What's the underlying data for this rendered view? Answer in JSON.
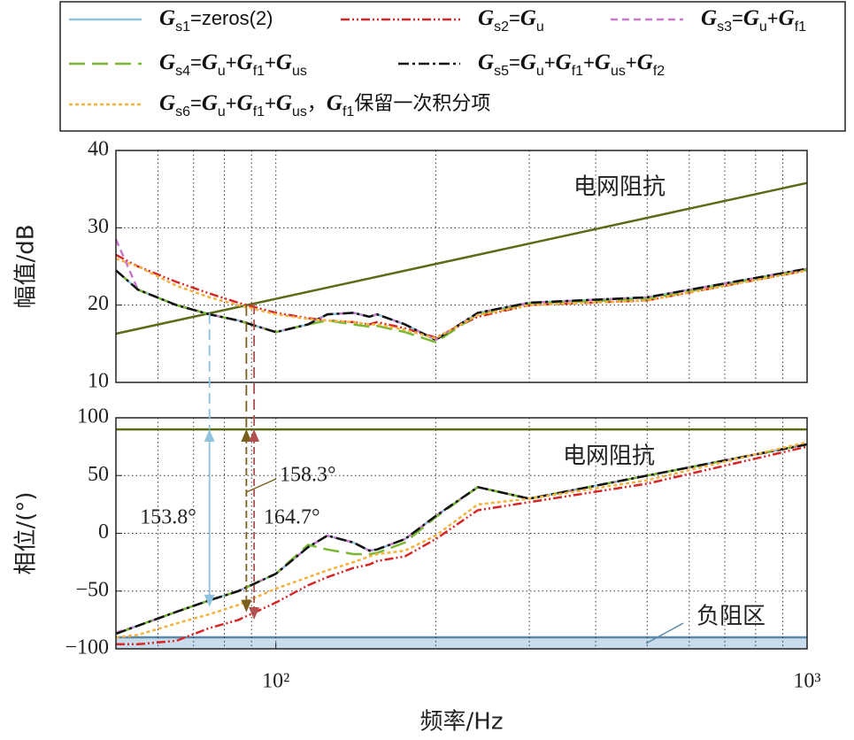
{
  "chart_data": [
    {
      "type": "line",
      "y_label": "幅值/dB",
      "xlog": true,
      "xlim": [
        50,
        1000
      ],
      "ylim": [
        10,
        40
      ],
      "yticks": [
        10,
        20,
        30,
        40
      ],
      "grid": true,
      "xgrid": [
        60,
        70,
        80,
        90,
        100,
        200,
        300,
        400,
        500,
        600,
        700,
        800,
        900
      ],
      "x": [
        50,
        55,
        65,
        75,
        85,
        100,
        115,
        125,
        140,
        150,
        155,
        175,
        200,
        240,
        300,
        500,
        1000
      ],
      "series": [
        {
          "name": "Gs1=zeros(2)",
          "color": "#8fc3dd",
          "dash": "none",
          "values": [
            24.5,
            22,
            20,
            18.8,
            18,
            16.5,
            17.5,
            18.8,
            19,
            18.5,
            18.8,
            17.5,
            15.5,
            19,
            20.3,
            21,
            24.7
          ]
        },
        {
          "name": "Gs2=Gu",
          "color": "#d62728",
          "dash": "10,3,2,3,2,3",
          "values": [
            26.5,
            25,
            23,
            21.5,
            20.3,
            19,
            18.3,
            18,
            17.8,
            17.5,
            17.8,
            17,
            15.8,
            18.5,
            20,
            20.6,
            24.5
          ]
        },
        {
          "name": "Gs3=Gu+Gf1",
          "color": "#c878c8",
          "dash": "8,5",
          "values": [
            28.5,
            22,
            20,
            18.8,
            18,
            16.5,
            17.5,
            18.8,
            19,
            18.5,
            18.8,
            17.5,
            15.5,
            19,
            20.3,
            21,
            24.7
          ]
        },
        {
          "name": "Gs4=Gu+Gf1+Gus",
          "color": "#7ab833",
          "dash": "18,8",
          "values": [
            24.5,
            22,
            20,
            18.8,
            18,
            16.5,
            17.5,
            18,
            17.5,
            17.2,
            17.3,
            16.5,
            15.2,
            18.8,
            20.2,
            20.8,
            24.6
          ]
        },
        {
          "name": "Gs5=Gu+Gf1+Gus+Gf2",
          "color": "#111111",
          "dash": "12,4,3,4",
          "values": [
            24.5,
            22,
            20,
            18.8,
            18,
            16.5,
            17.5,
            18.8,
            19,
            18.5,
            18.8,
            17.5,
            15.5,
            19,
            20.3,
            21,
            24.7
          ]
        },
        {
          "name": "Gs6=Gu+Gf1+Gus，Gf1保留一次积分项",
          "color": "#f4b23e",
          "dash": "4,3",
          "values": [
            26,
            25,
            22.5,
            21,
            20,
            18.8,
            18.2,
            18,
            17.8,
            17.5,
            17.5,
            16.8,
            15.7,
            18.7,
            20,
            20.6,
            24.5
          ]
        }
      ],
      "reference": {
        "name": "电网阻抗",
        "color": "#5b6b17",
        "x": [
          50,
          1000
        ],
        "values": [
          16.3,
          35.8
        ]
      }
    },
    {
      "type": "line",
      "y_label": "相位/(°)",
      "x_label": "频率/Hz",
      "xlog": true,
      "xlim": [
        50,
        1000
      ],
      "ylim": [
        -100,
        100
      ],
      "yticks": [
        {
          "value": -100,
          "label": "−100"
        },
        {
          "value": -50,
          "label": "−50"
        },
        0,
        50,
        100
      ],
      "grid": true,
      "xticks": [
        {
          "value": 100,
          "label": "10²"
        },
        {
          "value": 1000,
          "label": "10³"
        }
      ],
      "xgrid": [
        60,
        70,
        80,
        90,
        100,
        200,
        300,
        400,
        500,
        600,
        700,
        800,
        900
      ],
      "x": [
        50,
        55,
        65,
        75,
        85,
        100,
        115,
        125,
        140,
        150,
        155,
        175,
        200,
        240,
        300,
        500,
        1000
      ],
      "series": [
        {
          "color": "#8fc3dd",
          "dash": "none",
          "values": [
            -87,
            -80,
            -68,
            -58,
            -50,
            -35,
            -12,
            -2,
            -8,
            -15,
            -14,
            -5,
            15,
            40,
            30,
            50,
            77
          ]
        },
        {
          "color": "#d62728",
          "dash": "10,3,2,3,2,3",
          "values": [
            -96,
            -96,
            -93,
            -82,
            -75,
            -60,
            -45,
            -38,
            -30,
            -27,
            -24,
            -20,
            -5,
            20,
            27,
            43,
            75
          ]
        },
        {
          "color": "#c878c8",
          "dash": "8,5",
          "values": [
            -86,
            -80,
            -68,
            -58,
            -50,
            -35,
            -12,
            -2,
            -8,
            -15,
            -14,
            -5,
            15,
            40,
            30,
            50,
            77
          ]
        },
        {
          "color": "#7ab833",
          "dash": "18,8",
          "values": [
            -87,
            -80,
            -68,
            -58,
            -50,
            -35,
            -10,
            -14,
            -18,
            -18,
            -17,
            -8,
            14,
            40,
            30,
            50,
            77
          ]
        },
        {
          "color": "#111111",
          "dash": "12,4,3,4",
          "values": [
            -87,
            -80,
            -68,
            -58,
            -50,
            -35,
            -12,
            -2,
            -8,
            -15,
            -14,
            -5,
            15,
            40,
            30,
            50,
            77
          ]
        },
        {
          "color": "#f4b23e",
          "dash": "4,3",
          "values": [
            -90,
            -88,
            -78,
            -70,
            -62,
            -48,
            -38,
            -32,
            -25,
            -20,
            -18,
            -15,
            -2,
            25,
            30,
            46,
            79
          ]
        }
      ],
      "reference": {
        "name": "电网阻抗",
        "color": "#5b6b17",
        "x": [
          50,
          1000
        ],
        "values": [
          90,
          90
        ]
      },
      "region": {
        "name": "负阻区",
        "from": -100,
        "to": -90,
        "color": "#c9dceb",
        "edge": "#5a88a8"
      },
      "annotations": [
        {
          "text": "153.8°",
          "x": 75,
          "from": 90,
          "to": -63.8,
          "color": "#8fc3dd"
        },
        {
          "text": "158.3°",
          "x": 88,
          "from": 90,
          "to": -68.3,
          "color": "#7a5e1e"
        },
        {
          "text": "164.7°",
          "x": 91,
          "from": 90,
          "to": -74.7,
          "color": "#b05050"
        }
      ]
    }
  ]
}
